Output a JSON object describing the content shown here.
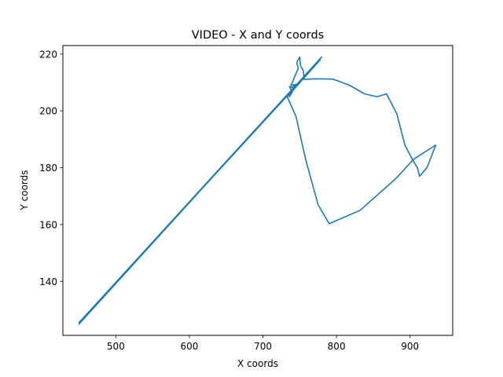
{
  "chart_data": {
    "type": "line",
    "title": "VIDEO - X and Y coords",
    "xlabel": "X coords",
    "ylabel": "Y coords",
    "xlim": [
      428,
      958
    ],
    "ylim": [
      121,
      223
    ],
    "xticks": [
      500,
      600,
      700,
      800,
      900
    ],
    "yticks": [
      140,
      160,
      180,
      200,
      220
    ],
    "grid": false,
    "series": [
      {
        "color": "#1f77b4",
        "points": [
          [
            450,
            125
          ],
          [
            780,
            219
          ],
          [
            450,
            125.5
          ],
          [
            778,
            218
          ],
          [
            733,
            205
          ],
          [
            745,
            198
          ],
          [
            758,
            183
          ],
          [
            775,
            167
          ],
          [
            790,
            160.3
          ],
          [
            832,
            165
          ],
          [
            880,
            176
          ],
          [
            905,
            183
          ],
          [
            935,
            188
          ],
          [
            923,
            180
          ],
          [
            913,
            177
          ],
          [
            910,
            180
          ],
          [
            903,
            183
          ],
          [
            893,
            188
          ],
          [
            882,
            199
          ],
          [
            868,
            206
          ],
          [
            855,
            205
          ],
          [
            838,
            206
          ],
          [
            818,
            209
          ],
          [
            795,
            211.2
          ],
          [
            770,
            211.3
          ],
          [
            756,
            211.1
          ],
          [
            755,
            214
          ],
          [
            751,
            216
          ],
          [
            750,
            219
          ],
          [
            746,
            217
          ],
          [
            748,
            215
          ],
          [
            743,
            212
          ],
          [
            740,
            210
          ],
          [
            738,
            209
          ],
          [
            745,
            209.3
          ],
          [
            740,
            208.3
          ],
          [
            736,
            208.6
          ],
          [
            738,
            207.5
          ],
          [
            742,
            208
          ],
          [
            745,
            209
          ],
          [
            736,
            205
          ]
        ]
      }
    ]
  }
}
